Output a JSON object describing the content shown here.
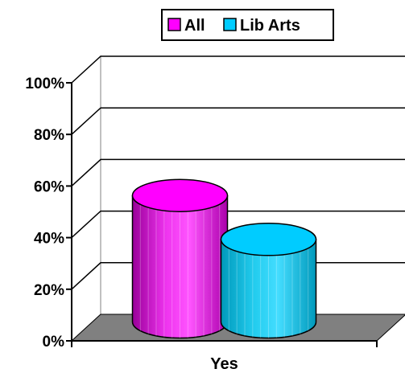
{
  "chart_data": {
    "type": "bar",
    "style": "3d-cylinder",
    "categories": [
      "Yes"
    ],
    "series": [
      {
        "name": "All",
        "values": [
          49
        ],
        "color": "#ff00ff"
      },
      {
        "name": "Lib Arts",
        "values": [
          32
        ],
        "color": "#00ccff"
      }
    ],
    "ylim": [
      0,
      100
    ],
    "y_ticks": [
      0,
      20,
      40,
      60,
      80,
      100
    ],
    "y_tick_labels": [
      "0%",
      "20%",
      "40%",
      "60%",
      "80%",
      "100%"
    ],
    "y_format": "percent",
    "grid": true,
    "legend": {
      "position": "top-right",
      "border": true
    },
    "floor_color": "#808080"
  }
}
